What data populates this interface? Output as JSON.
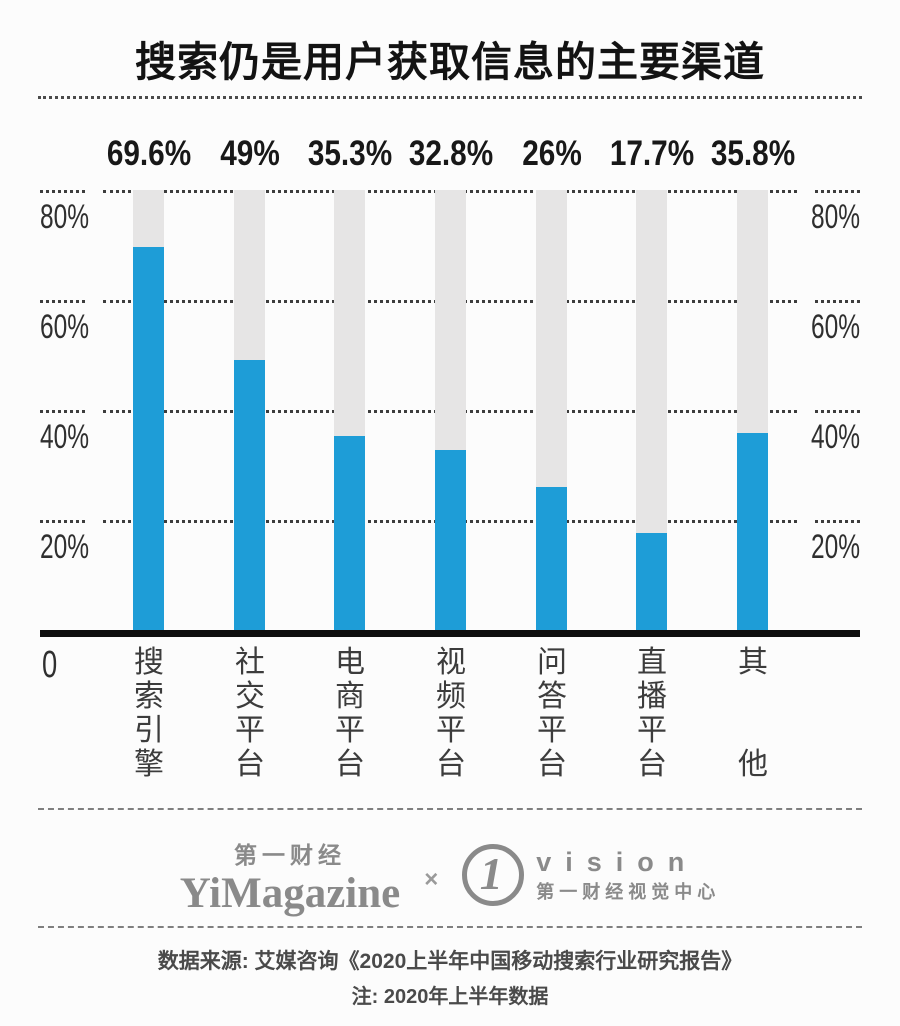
{
  "title": "搜索仍是用户获取信息的主要渠道",
  "chart_data": {
    "type": "bar",
    "title": "搜索仍是用户获取信息的主要渠道",
    "categories": [
      "搜索引擎",
      "社交平台",
      "电商平台",
      "视频平台",
      "问答平台",
      "直播平台",
      "其他"
    ],
    "values": [
      69.6,
      49,
      35.3,
      32.8,
      26,
      17.7,
      35.8
    ],
    "value_labels": [
      "69.6%",
      "49%",
      "35.3%",
      "32.8%",
      "26%",
      "17.7%",
      "35.8%"
    ],
    "ylim": [
      0,
      80
    ],
    "yticks": [
      {
        "value": 80,
        "label": "80%"
      },
      {
        "value": 60,
        "label": "60%"
      },
      {
        "value": 40,
        "label": "40%"
      },
      {
        "value": 20,
        "label": "20%"
      }
    ],
    "origin_label": "0",
    "grid": "horizontal-dotted",
    "legend": "none",
    "y_axis_sides": "both",
    "bar_color": "#1E9DD7",
    "track_color": "#E6E5E5",
    "axis_color": "#0e0e0e"
  },
  "footer": {
    "brand_left_cn": "第一财经",
    "brand_left_en": "YiMagazine",
    "cross": "×",
    "brand_right_mark": "1",
    "brand_right_en": "vision",
    "brand_right_cn": "第一财经视觉中心",
    "source_line1": "数据来源: 艾媒咨询《2020上半年中国移动搜索行业研究报告》",
    "source_line2": "注: 2020年上半年数据"
  }
}
